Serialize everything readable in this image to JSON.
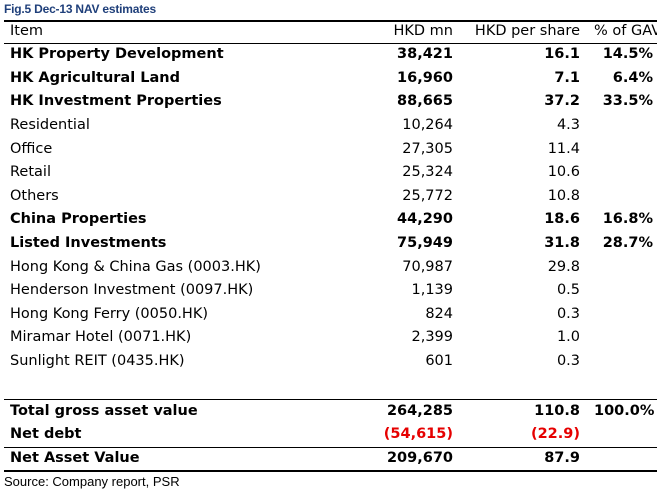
{
  "figure_title": "Fig.5 Dec-13 NAV estimates",
  "headers": {
    "item": "Item",
    "hkd_mn": "HKD mn",
    "hkd_per_share": "HKD per share",
    "pct_gav": "% of GAV"
  },
  "rows": [
    {
      "item": "HK Property Development",
      "hkd_mn": "38,421",
      "per_share": "16.1",
      "pct": "14.5%",
      "bold": true
    },
    {
      "item": "HK Agricultural Land",
      "hkd_mn": "16,960",
      "per_share": "7.1",
      "pct": "6.4%",
      "bold": true
    },
    {
      "item": "HK Investment Properties",
      "hkd_mn": "88,665",
      "per_share": "37.2",
      "pct": "33.5%",
      "bold": true
    },
    {
      "item": "Residential",
      "hkd_mn": "10,264",
      "per_share": "4.3",
      "pct": "",
      "bold": false
    },
    {
      "item": "Office",
      "hkd_mn": "27,305",
      "per_share": "11.4",
      "pct": "",
      "bold": false
    },
    {
      "item": "Retail",
      "hkd_mn": "25,324",
      "per_share": "10.6",
      "pct": "",
      "bold": false
    },
    {
      "item": "Others",
      "hkd_mn": "25,772",
      "per_share": "10.8",
      "pct": "",
      "bold": false
    },
    {
      "item": "China Properties",
      "hkd_mn": "44,290",
      "per_share": "18.6",
      "pct": "16.8%",
      "bold": true
    },
    {
      "item": "Listed Investments",
      "hkd_mn": "75,949",
      "per_share": "31.8",
      "pct": "28.7%",
      "bold": true
    },
    {
      "item": "Hong Kong & China Gas (0003.HK)",
      "hkd_mn": "70,987",
      "per_share": "29.8",
      "pct": "",
      "bold": false
    },
    {
      "item": "Henderson Investment (0097.HK)",
      "hkd_mn": "1,139",
      "per_share": "0.5",
      "pct": "",
      "bold": false
    },
    {
      "item": "Hong Kong Ferry (0050.HK)",
      "hkd_mn": "824",
      "per_share": "0.3",
      "pct": "",
      "bold": false
    },
    {
      "item": "Miramar Hotel (0071.HK)",
      "hkd_mn": "2,399",
      "per_share": "1.0",
      "pct": "",
      "bold": false
    },
    {
      "item": "Sunlight REIT (0435.HK)",
      "hkd_mn": "601",
      "per_share": "0.3",
      "pct": "",
      "bold": false
    }
  ],
  "totals": {
    "gav": {
      "item": "Total gross asset value",
      "hkd_mn": "264,285",
      "per_share": "110.8",
      "pct": "100.0%"
    },
    "net_debt": {
      "item": "Net debt",
      "hkd_mn": "(54,615)",
      "per_share": "(22.9)",
      "pct": ""
    },
    "nav": {
      "item": "Net Asset Value",
      "hkd_mn": "209,670",
      "per_share": "87.9",
      "pct": ""
    }
  },
  "colors": {
    "title": "#1f3f7a",
    "negative": "#e60000"
  },
  "source": "Source: Company report, PSR"
}
